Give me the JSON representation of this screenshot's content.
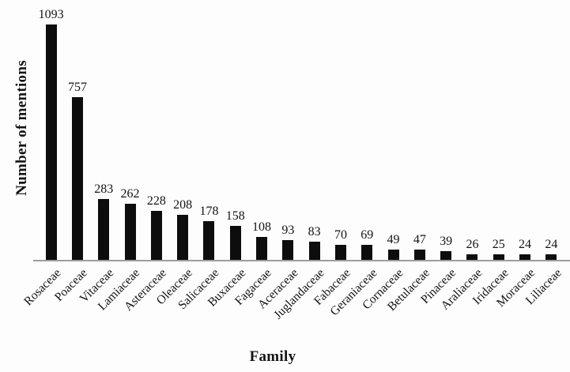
{
  "chart_data": {
    "type": "bar",
    "title": "",
    "xlabel": "Family",
    "ylabel": "Number of mentions",
    "categories": [
      "Rosaceae",
      "Poaceae",
      "Vitaceae",
      "Lamiaceae",
      "Asteraceae",
      "Oleaceae",
      "Salicaceae",
      "Buxaceae",
      "Fagaceae",
      "Aceraceae",
      "Juglandaceae",
      "Fabaceae",
      "Geraniaceae",
      "Cornaceae",
      "Betulaceae",
      "Pinaceae",
      "Araliaceae",
      "Iridaceae",
      "Moraceae",
      "Liliaceae"
    ],
    "values": [
      1093,
      757,
      283,
      262,
      228,
      208,
      178,
      158,
      108,
      93,
      83,
      70,
      69,
      49,
      47,
      39,
      26,
      25,
      24,
      24
    ],
    "value_labels_shown": true,
    "ylim": [
      0,
      1150
    ],
    "grid": false,
    "legend": false,
    "bar_color": "#0d0d0d",
    "axis_line_color": "#9d9d9d",
    "text_color": "#141414"
  }
}
